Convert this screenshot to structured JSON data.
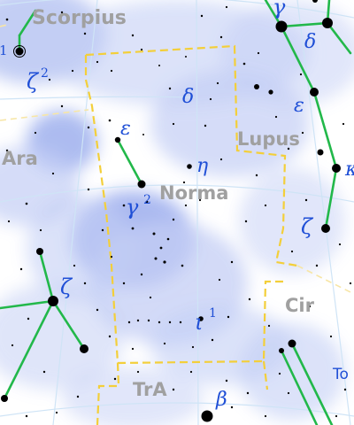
{
  "constellations": {
    "scorpius": "Scorpius",
    "ara": "Ara",
    "norma": "Norma",
    "lupus": "Lupus",
    "cir": "Cir",
    "tra": "TrA",
    "tel_partial": "To"
  },
  "star_labels": {
    "zeta2_scorpii": "ζ",
    "zeta2_scorpii_sup": "2",
    "gamma_lupi": "γ",
    "delta_lupi": "δ",
    "epsilon_lupi": "ε",
    "kappa_lupi_partial": "κ",
    "zeta_lupi": "ζ",
    "delta_normae": "δ",
    "epsilon_normae": "ε",
    "eta_normae": "η",
    "gamma2_normae": "γ",
    "gamma2_normae_sup": "2",
    "iota1_normae": "ι",
    "iota1_normae_sup": "1",
    "zeta_arae": "ζ",
    "beta_tra": "β",
    "partial_one": "1"
  },
  "colors": {
    "milky_way": "#b9c6f3",
    "boundary": "#f3cf3a",
    "figure_lines": "#22b84a",
    "labels": "#1f4fd6",
    "names": "#a0a0a0",
    "grid": "#cfe4f6"
  }
}
